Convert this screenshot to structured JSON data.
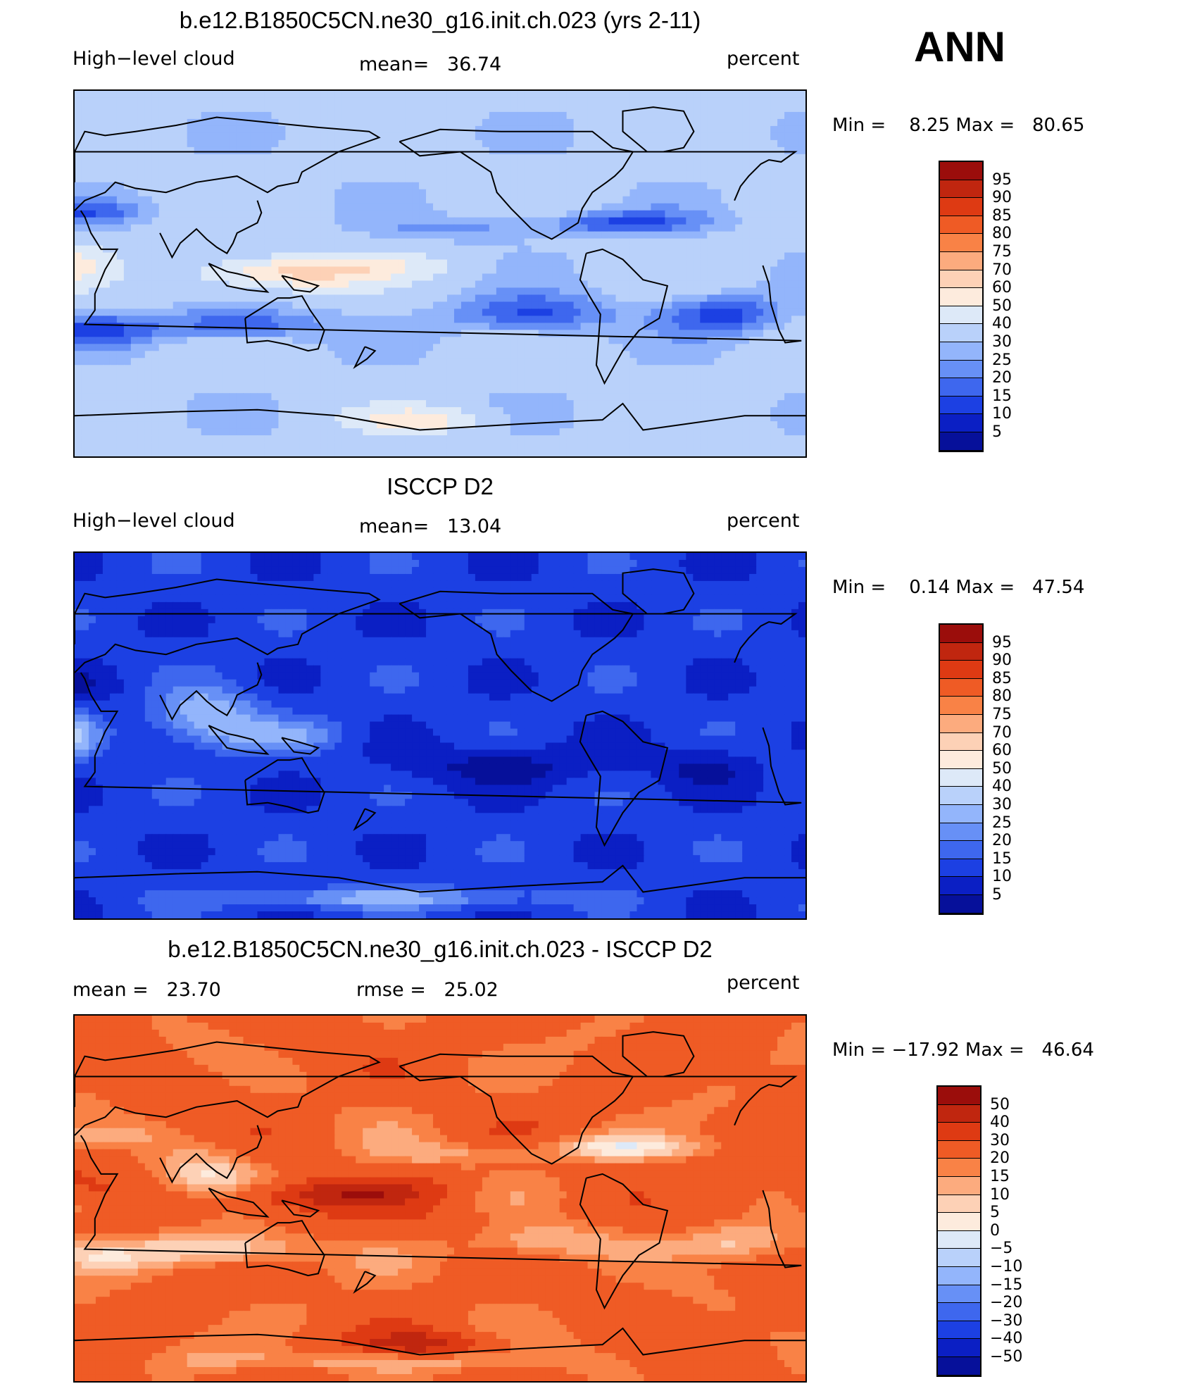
{
  "header": {
    "season": "ANN"
  },
  "panels": [
    {
      "title": "b.e12.B1850C5CN.ne30_g16.init.ch.023 (yrs 2-11)",
      "left_label": "High−level cloud",
      "mid_label": "mean=   36.74",
      "right_label": "percent",
      "min": "8.25",
      "max": "80.65",
      "minmax_text": "Min =    8.25 Max =   80.65",
      "colorbar": {
        "labels": [
          "95",
          "90",
          "85",
          "80",
          "75",
          "70",
          "60",
          "50",
          "40",
          "30",
          "25",
          "20",
          "15",
          "10",
          "5"
        ],
        "colors": [
          "#9b0d0b",
          "#c0260f",
          "#de3a13",
          "#ef5b25",
          "#f98246",
          "#fcab7e",
          "#fdd1b6",
          "#fdebdd",
          "#dde9f8",
          "#b9d1fa",
          "#93b5fb",
          "#6790f6",
          "#3e67ee",
          "#1c40e3",
          "#0b1fc4",
          "#06109a"
        ]
      },
      "field": "model"
    },
    {
      "title": "ISCCP D2",
      "left_label": "High−level cloud",
      "mid_label": "mean=   13.04",
      "right_label": "percent",
      "min": "0.14",
      "max": "47.54",
      "minmax_text": "Min =    0.14 Max =   47.54",
      "colorbar": {
        "labels": [
          "95",
          "90",
          "85",
          "80",
          "75",
          "70",
          "60",
          "50",
          "40",
          "30",
          "25",
          "20",
          "15",
          "10",
          "5"
        ],
        "colors": [
          "#9b0d0b",
          "#c0260f",
          "#de3a13",
          "#ef5b25",
          "#f98246",
          "#fcab7e",
          "#fdd1b6",
          "#fdebdd",
          "#dde9f8",
          "#b9d1fa",
          "#93b5fb",
          "#6790f6",
          "#3e67ee",
          "#1c40e3",
          "#0b1fc4",
          "#06109a"
        ]
      },
      "field": "obs"
    },
    {
      "title": "b.e12.B1850C5CN.ne30_g16.init.ch.023 - ISCCP D2",
      "left_label": "mean =   23.70",
      "mid_label": "rmse =   25.02",
      "right_label": "percent",
      "min": "−17.92",
      "max": "46.64",
      "minmax_text": "Min = −17.92 Max =   46.64",
      "colorbar": {
        "labels": [
          "50",
          "40",
          "30",
          "20",
          "15",
          "10",
          "5",
          "0",
          "−5",
          "−10",
          "−15",
          "−20",
          "−30",
          "−40",
          "−50"
        ],
        "colors": [
          "#9b0d0b",
          "#c0260f",
          "#de3a13",
          "#ef5b25",
          "#f98246",
          "#fcab7e",
          "#fdd1b6",
          "#fdebdd",
          "#dde9f8",
          "#b9d1fa",
          "#93b5fb",
          "#6790f6",
          "#3e67ee",
          "#1c40e3",
          "#0b1fc4",
          "#06109a"
        ]
      },
      "field": "diff"
    }
  ]
}
